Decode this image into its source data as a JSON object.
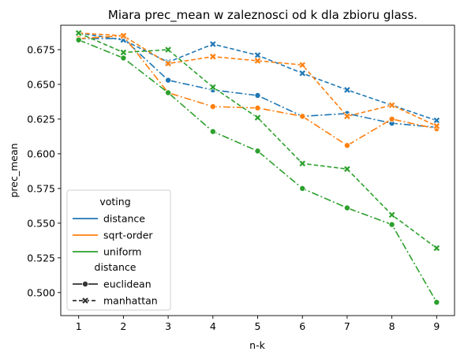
{
  "chart_data": {
    "type": "line",
    "title": "Miara prec_mean w zaleznosci od k dla zbioru glass.",
    "xlabel": "n-k",
    "ylabel": "prec_mean",
    "x": [
      1,
      2,
      3,
      4,
      5,
      6,
      7,
      8,
      9
    ],
    "xlim": [
      0.6,
      9.4
    ],
    "ylim": [
      0.4834,
      0.6926
    ],
    "yticks": [
      0.5,
      0.525,
      0.55,
      0.575,
      0.6,
      0.625,
      0.65,
      0.675
    ],
    "ytick_labels": [
      "0.500",
      "0.525",
      "0.550",
      "0.575",
      "0.600",
      "0.625",
      "0.650",
      "0.675"
    ],
    "grid": false,
    "legend": {
      "position": "lower-left",
      "hue_title": "voting",
      "style_title": "distance",
      "hue_entries": [
        "distance",
        "sqrt-order",
        "uniform"
      ],
      "style_entries": [
        "euclidean",
        "manhattan"
      ]
    },
    "colors": {
      "distance": "#1f77b4",
      "sqrt-order": "#ff7f0e",
      "uniform": "#2ca02c",
      "legend_style": "#333333"
    },
    "series": [
      {
        "name": "distance, euclidean",
        "hue": "distance",
        "style": "euclidean",
        "values": [
          0.683,
          0.683,
          0.653,
          0.646,
          0.642,
          0.627,
          0.629,
          0.622,
          0.619
        ]
      },
      {
        "name": "distance, manhattan",
        "hue": "distance",
        "style": "manhattan",
        "values": [
          0.687,
          0.682,
          0.666,
          0.679,
          0.671,
          0.658,
          0.646,
          0.635,
          0.624
        ]
      },
      {
        "name": "sqrt-order, euclidean",
        "hue": "sqrt-order",
        "style": "euclidean",
        "values": [
          0.683,
          0.685,
          0.644,
          0.634,
          0.633,
          0.627,
          0.606,
          0.625,
          0.618
        ]
      },
      {
        "name": "sqrt-order, manhattan",
        "hue": "sqrt-order",
        "style": "manhattan",
        "values": [
          0.687,
          0.685,
          0.665,
          0.67,
          0.667,
          0.664,
          0.627,
          0.635,
          0.62
        ]
      },
      {
        "name": "uniform, euclidean",
        "hue": "uniform",
        "style": "euclidean",
        "values": [
          0.682,
          0.669,
          0.644,
          0.616,
          0.602,
          0.575,
          0.561,
          0.549,
          0.493
        ]
      },
      {
        "name": "uniform, manhattan",
        "hue": "uniform",
        "style": "manhattan",
        "values": [
          0.687,
          0.673,
          0.675,
          0.648,
          0.626,
          0.593,
          0.589,
          0.556,
          0.532
        ]
      }
    ]
  }
}
